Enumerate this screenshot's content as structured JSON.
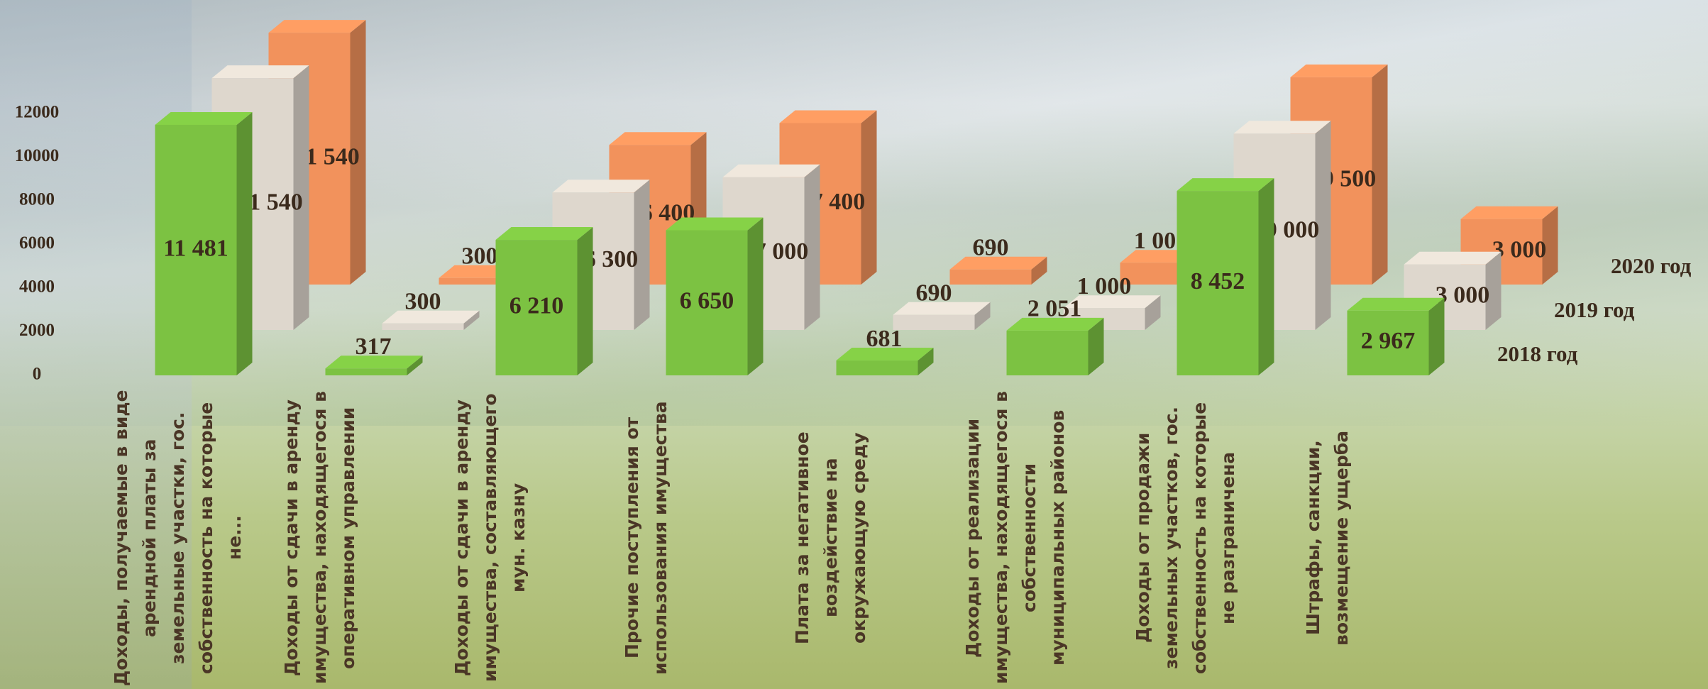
{
  "chart_data": {
    "type": "bar3d",
    "categories": [
      "Доходы, получаемые в виде арендной платы за земельные участки, гос. собственность на которые не...",
      "Доходы от сдачи в аренду имущества, находящегося в оперативном управлении",
      "Доходы от сдачи в аренду имущества, составляющего мун. казну",
      "Прочие поступления от использования имущества",
      "Плата за негативное воздействие на окружающую среду",
      "Доходы от реализации имущества, находящегося в собственности муниципальных районов",
      "Доходы от продажи земельных участков, гос. собственность на которые не разграничена",
      "Штрафы, санкции, возмещение ущерба"
    ],
    "series": [
      {
        "name": "2018 год",
        "color": "#7cc242",
        "values": [
          11481,
          317,
          6210,
          6650,
          681,
          2051,
          8452,
          2967
        ],
        "value_labels": [
          "11 481",
          "317",
          "6 210",
          "6 650",
          "681",
          "2 051",
          "8 452",
          "2 967"
        ]
      },
      {
        "name": "2019 год",
        "color": "#ded7cd",
        "values": [
          11540,
          300,
          6300,
          7000,
          690,
          1000,
          9000,
          3000
        ],
        "value_labels": [
          "11 540",
          "300",
          "6 300",
          "7 000",
          "690",
          "1 000",
          "9 000",
          "3 000"
        ]
      },
      {
        "name": "2020 год",
        "color": "#f2925c",
        "values": [
          11540,
          300,
          6400,
          7400,
          690,
          1000,
          9500,
          3000
        ],
        "value_labels": [
          "11 540",
          "300",
          "6 400",
          "7 400",
          "690",
          "1 000",
          "9 500",
          "3 000"
        ]
      }
    ],
    "ylim": [
      0,
      12000
    ],
    "yticks": [
      0,
      2000,
      4000,
      6000,
      8000,
      10000,
      12000
    ],
    "legend": "right"
  }
}
